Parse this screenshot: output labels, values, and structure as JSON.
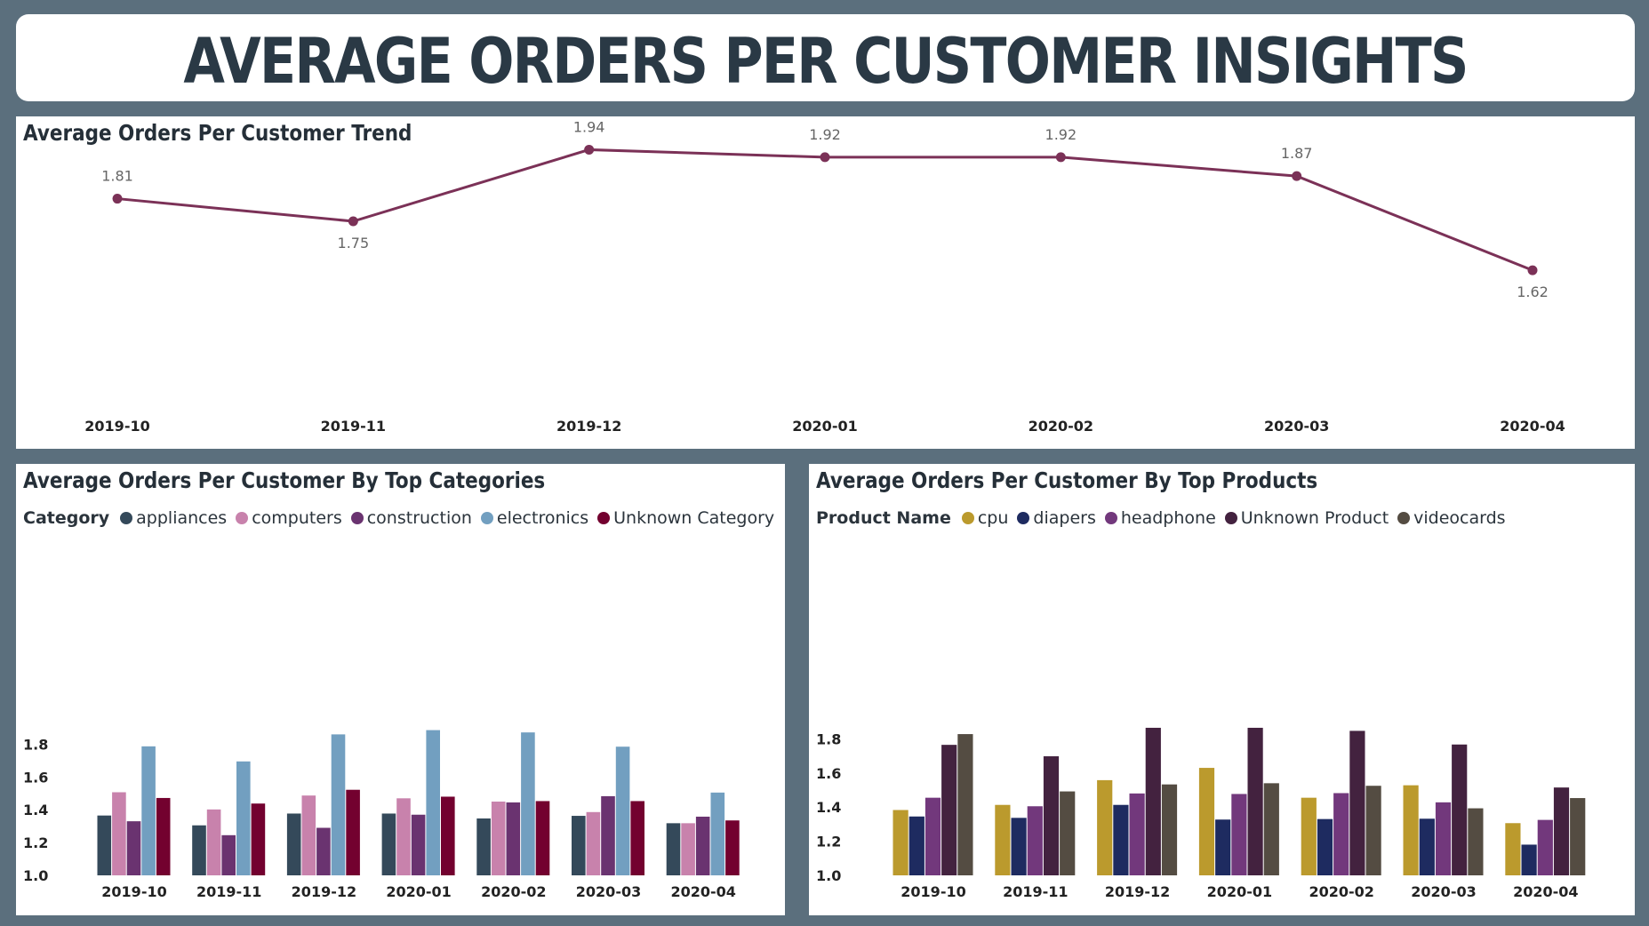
{
  "page": {
    "title": "AVERAGE ORDERS PER CUSTOMER INSIGHTS"
  },
  "colors": {
    "trend_line": "#7b3157",
    "categories": [
      "#34495a",
      "#c882ac",
      "#6a3370",
      "#729fc0",
      "#73012f"
    ],
    "products": [
      "#bb9a2d",
      "#1e2b60",
      "#72387c",
      "#43223f",
      "#544c42"
    ]
  },
  "chart_data": [
    {
      "type": "line",
      "title": "Average Orders Per Customer Trend",
      "x": [
        "2019-10",
        "2019-11",
        "2019-12",
        "2020-01",
        "2020-02",
        "2020-03",
        "2020-04"
      ],
      "series": [
        {
          "values": [
            1.81,
            1.75,
            1.94,
            1.92,
            1.92,
            1.87,
            1.62
          ]
        }
      ],
      "data_labels": [
        "1.81",
        "1.75",
        "1.94",
        "1.92",
        "1.92",
        "1.87",
        "1.62"
      ],
      "ylim": [
        1.5,
        2.0
      ],
      "grid": false
    },
    {
      "type": "bar",
      "title": "Average Orders Per Customer By Top Categories",
      "legend_title": "Category",
      "legend_position": "top-left",
      "categories": [
        "2019-10",
        "2019-11",
        "2019-12",
        "2020-01",
        "2020-02",
        "2020-03",
        "2020-04"
      ],
      "series": [
        {
          "name": "appliances",
          "values": [
            1.365,
            1.305,
            1.377,
            1.377,
            1.347,
            1.363,
            1.318
          ]
        },
        {
          "name": "computers",
          "values": [
            1.507,
            1.402,
            1.487,
            1.47,
            1.45,
            1.386,
            1.318
          ]
        },
        {
          "name": "construction",
          "values": [
            1.33,
            1.245,
            1.29,
            1.37,
            1.445,
            1.483,
            1.358
          ]
        },
        {
          "name": "electronics",
          "values": [
            1.787,
            1.695,
            1.86,
            1.886,
            1.872,
            1.785,
            1.505
          ]
        },
        {
          "name": "Unknown Category",
          "values": [
            1.472,
            1.438,
            1.522,
            1.48,
            1.453,
            1.453,
            1.335
          ]
        }
      ],
      "yticks": [
        "1.0",
        "1.2",
        "1.4",
        "1.6",
        "1.8"
      ],
      "ylim": [
        1.0,
        1.9
      ],
      "grid": false
    },
    {
      "type": "bar",
      "title": "Average Orders Per Customer By Top Products",
      "legend_title": "Product Name",
      "legend_position": "top-left",
      "categories": [
        "2019-10",
        "2019-11",
        "2019-12",
        "2020-01",
        "2020-02",
        "2020-03",
        "2020-04"
      ],
      "series": [
        {
          "name": "cpu",
          "values": [
            1.383,
            1.413,
            1.558,
            1.63,
            1.455,
            1.528,
            1.306
          ]
        },
        {
          "name": "diapers",
          "values": [
            1.345,
            1.337,
            1.413,
            1.327,
            1.33,
            1.332,
            1.18
          ]
        },
        {
          "name": "headphone",
          "values": [
            1.455,
            1.405,
            1.48,
            1.477,
            1.482,
            1.428,
            1.325
          ]
        },
        {
          "name": "Unknown Product",
          "values": [
            1.765,
            1.698,
            1.865,
            1.865,
            1.847,
            1.767,
            1.515
          ]
        },
        {
          "name": "videocards",
          "values": [
            1.828,
            1.492,
            1.533,
            1.54,
            1.525,
            1.393,
            1.453
          ]
        }
      ],
      "yticks": [
        "1.0",
        "1.2",
        "1.4",
        "1.6",
        "1.8"
      ],
      "ylim": [
        1.0,
        1.87
      ],
      "grid": false
    }
  ]
}
